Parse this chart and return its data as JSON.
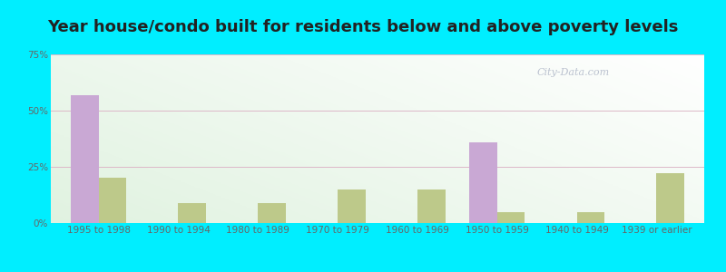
{
  "title": "Year house/condo built for residents below and above poverty levels",
  "categories": [
    "1995 to 1998",
    "1990 to 1994",
    "1980 to 1989",
    "1970 to 1979",
    "1960 to 1969",
    "1950 to 1959",
    "1940 to 1949",
    "1939 or earlier"
  ],
  "below_poverty": [
    57,
    0,
    0,
    0,
    0,
    36,
    0,
    0
  ],
  "above_poverty": [
    20,
    9,
    9,
    15,
    15,
    5,
    5,
    22
  ],
  "below_color": "#c9a8d4",
  "above_color": "#bdc98a",
  "outer_background": "#00eeff",
  "ylim": [
    0,
    75
  ],
  "yticks": [
    0,
    25,
    50,
    75
  ],
  "ytick_labels": [
    "0%",
    "25%",
    "50%",
    "75%"
  ],
  "bar_width": 0.35,
  "title_fontsize": 13,
  "tick_fontsize": 7.5,
  "legend_fontsize": 9
}
